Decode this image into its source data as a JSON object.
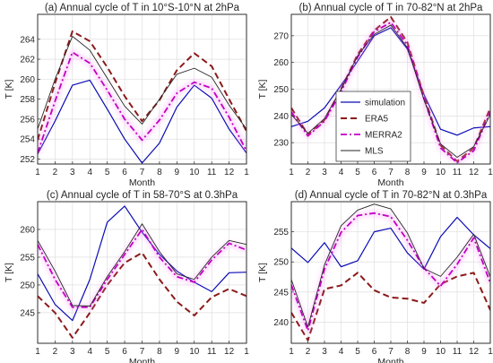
{
  "legend": {
    "placement": "inside panel (b), lower-left",
    "entries": [
      "simulation",
      "ERA5",
      "MERRA2",
      "MLS"
    ]
  },
  "series_styles": {
    "simulation": {
      "color": "#0a0ab4",
      "dash": "solid",
      "width": 1.2,
      "glow": false
    },
    "ERA5": {
      "color": "#8b1a1a",
      "dash": "dashed",
      "width": 2.0,
      "glow": false
    },
    "MERRA2": {
      "color": "#c000c0",
      "dash": "dashdot",
      "width": 1.8,
      "glow": true
    },
    "MLS": {
      "color": "#262626",
      "dash": "solid",
      "width": 0.9,
      "glow": false
    }
  },
  "chart_data": [
    {
      "type": "line",
      "title": "(a) Annual cycle of T in 10°S-10°N at 2hPa",
      "xlabel": "Month",
      "ylabel": "T [K]",
      "x": [
        1,
        2,
        3,
        4,
        5,
        6,
        7,
        8,
        9,
        10,
        11,
        12,
        13
      ],
      "xtick_labels": [
        "1",
        "2",
        "3",
        "4",
        "5",
        "6",
        "7",
        "8",
        "9",
        "10",
        "11",
        "12",
        "1"
      ],
      "ylim": [
        251.5,
        266.5
      ],
      "yticks": [
        252,
        254,
        256,
        258,
        260,
        262,
        264
      ],
      "grid": true,
      "series": [
        {
          "name": "simulation",
          "values": [
            252.5,
            255.8,
            259.4,
            259.9,
            257.0,
            254.0,
            251.6,
            253.6,
            257.2,
            259.4,
            258.1,
            255.0,
            252.6
          ]
        },
        {
          "name": "ERA5",
          "values": [
            253.9,
            259.6,
            264.8,
            263.8,
            261.2,
            258.3,
            255.8,
            257.9,
            260.9,
            262.6,
            261.3,
            258.0,
            254.8
          ]
        },
        {
          "name": "MERRA2",
          "values": [
            252.6,
            257.8,
            262.7,
            261.6,
            258.9,
            256.0,
            253.9,
            255.9,
            258.6,
            259.7,
            259.1,
            256.2,
            252.8
          ]
        },
        {
          "name": "MLS",
          "values": [
            255.0,
            260.0,
            264.3,
            262.9,
            260.1,
            257.3,
            255.5,
            258.0,
            260.5,
            261.1,
            260.2,
            257.4,
            255.0
          ]
        }
      ]
    },
    {
      "type": "line",
      "title": "(b) Annual cycle of T in 70-82°N at 2hPa",
      "xlabel": "Month",
      "ylabel": "T [K]",
      "x": [
        1,
        2,
        3,
        4,
        5,
        6,
        7,
        8,
        9,
        10,
        11,
        12,
        13
      ],
      "xtick_labels": [
        "1",
        "2",
        "3",
        "4",
        "5",
        "6",
        "7",
        "8",
        "9",
        "10",
        "11",
        "12",
        "1"
      ],
      "ylim": [
        222,
        278
      ],
      "yticks": [
        230,
        240,
        250,
        260,
        270
      ],
      "grid": true,
      "series": [
        {
          "name": "simulation",
          "values": [
            236.0,
            238.0,
            243.0,
            251.5,
            260.5,
            270.0,
            273.0,
            265.0,
            248.0,
            235.0,
            232.8,
            235.5,
            236.0
          ]
        },
        {
          "name": "ERA5",
          "values": [
            243.0,
            233.0,
            238.5,
            250.0,
            263.0,
            272.0,
            277.0,
            267.5,
            247.5,
            229.0,
            223.0,
            228.0,
            243.0
          ]
        },
        {
          "name": "MERRA2",
          "values": [
            241.5,
            232.5,
            238.0,
            249.0,
            262.0,
            271.5,
            275.0,
            266.5,
            246.5,
            228.0,
            222.5,
            227.0,
            241.5
          ]
        },
        {
          "name": "MLS",
          "values": [
            240.5,
            233.5,
            239.0,
            250.0,
            262.5,
            270.5,
            274.0,
            265.5,
            246.0,
            229.5,
            224.5,
            228.5,
            240.5
          ]
        }
      ]
    },
    {
      "type": "line",
      "title": "(c) Annual cycle of T in 58-70°S at 0.3hPa",
      "xlabel": "Month",
      "ylabel": "T [K]",
      "x": [
        1,
        2,
        3,
        4,
        5,
        6,
        7,
        8,
        9,
        10,
        11,
        12,
        13
      ],
      "xtick_labels": [
        "1",
        "2",
        "3",
        "4",
        "5",
        "6",
        "7",
        "8",
        "9",
        "10",
        "11",
        "12",
        "1"
      ],
      "ylim": [
        239.5,
        265
      ],
      "yticks": [
        245,
        250,
        255,
        260
      ],
      "grid": true,
      "series": [
        {
          "name": "simulation",
          "values": [
            252.0,
            246.5,
            243.6,
            251.0,
            261.3,
            264.2,
            259.5,
            255.5,
            252.5,
            250.5,
            248.8,
            252.2,
            252.3
          ]
        },
        {
          "name": "ERA5",
          "values": [
            248.0,
            245.0,
            240.5,
            245.0,
            250.0,
            254.0,
            255.8,
            251.0,
            247.0,
            244.5,
            247.8,
            249.3,
            248.0
          ]
        },
        {
          "name": "MERRA2",
          "values": [
            257.3,
            251.0,
            246.0,
            246.0,
            251.0,
            255.5,
            260.0,
            255.0,
            251.5,
            250.5,
            254.5,
            257.5,
            256.3
          ]
        },
        {
          "name": "MLS",
          "values": [
            258.0,
            252.5,
            246.3,
            246.2,
            251.5,
            256.0,
            261.0,
            256.0,
            252.0,
            251.0,
            255.0,
            258.0,
            257.3
          ]
        }
      ]
    },
    {
      "type": "line",
      "title": "(d) Annual cycle of T in 70-82°N at 0.3hPa",
      "xlabel": "Month",
      "ylabel": "T [K]",
      "x": [
        1,
        2,
        3,
        4,
        5,
        6,
        7,
        8,
        9,
        10,
        11,
        12,
        13
      ],
      "xtick_labels": [
        "1",
        "2",
        "3",
        "4",
        "5",
        "6",
        "7",
        "8",
        "9",
        "10",
        "11",
        "12",
        "1"
      ],
      "ylim": [
        236.5,
        260
      ],
      "yticks": [
        240,
        245,
        250,
        255
      ],
      "grid": true,
      "series": [
        {
          "name": "simulation",
          "values": [
            252.3,
            249.9,
            253.2,
            249.2,
            250.2,
            255.0,
            255.6,
            251.5,
            248.8,
            254.2,
            257.4,
            254.5,
            252.2
          ]
        },
        {
          "name": "ERA5",
          "values": [
            241.6,
            237.0,
            245.5,
            246.1,
            248.2,
            245.3,
            244.1,
            243.9,
            243.2,
            246.3,
            247.6,
            248.2,
            242.0
          ]
        },
        {
          "name": "MERRA2",
          "values": [
            246.2,
            238.6,
            248.8,
            254.9,
            257.7,
            258.1,
            257.5,
            253.6,
            249.0,
            246.0,
            249.6,
            254.0,
            246.5
          ]
        },
        {
          "name": "MLS",
          "values": [
            247.1,
            239.2,
            249.5,
            256.0,
            258.6,
            259.6,
            258.8,
            254.8,
            248.9,
            247.6,
            250.8,
            254.6,
            247.5
          ]
        }
      ]
    }
  ]
}
